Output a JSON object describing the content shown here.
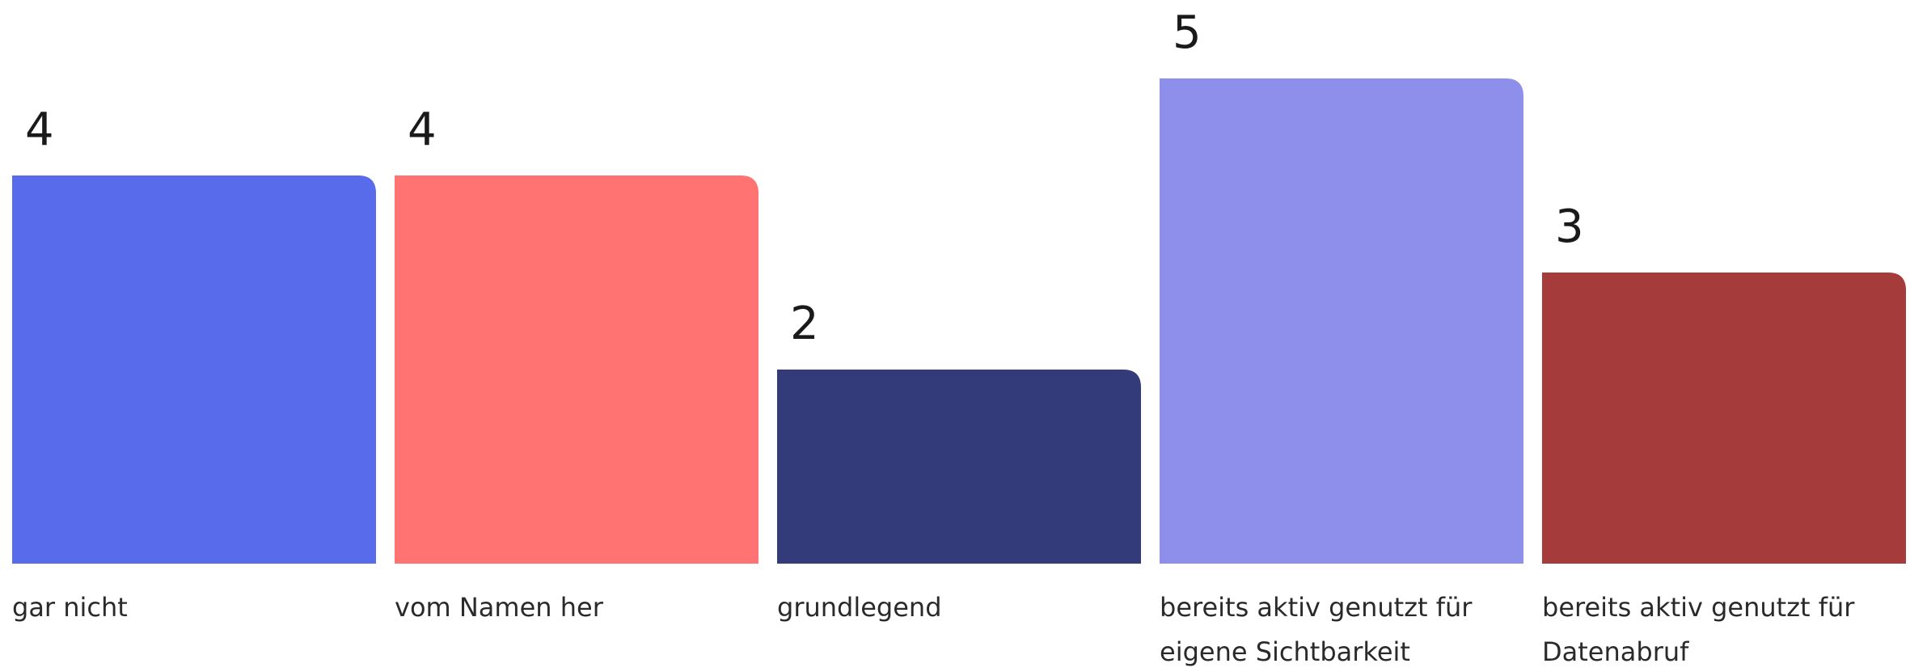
{
  "chart_data": {
    "type": "bar",
    "categories": [
      [
        "gar nicht"
      ],
      [
        "vom Namen her"
      ],
      [
        "grundlegend"
      ],
      [
        "bereits aktiv genutzt für",
        "eigene Sichtbarkeit"
      ],
      [
        "bereits aktiv genutzt für",
        "Datenabruf"
      ]
    ],
    "values": [
      4,
      4,
      2,
      5,
      3
    ],
    "colors": [
      "#586bea",
      "#ff7472",
      "#333b7a",
      "#8e8eeb",
      "#a63b3b"
    ],
    "ylim": [
      0,
      5
    ],
    "grid": false,
    "legend": "none"
  }
}
